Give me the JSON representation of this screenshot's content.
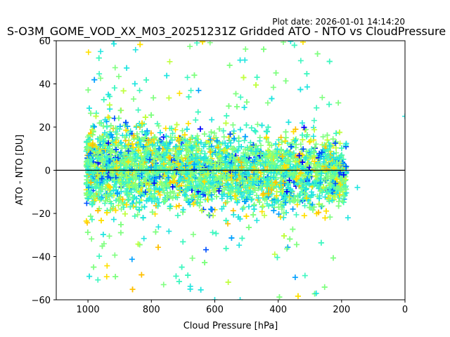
{
  "chart_data": {
    "type": "scatter",
    "title": "S-O3M_GOME_VOD_XX_M03_20251231Z Gridded ATO - NTO vs CloudPressure",
    "plot_date": "Plot date: 2026-01-01 14:14:20",
    "xlabel": "Cloud Pressure [hPa]",
    "ylabel": "ATO - NTO [DU]",
    "xlim": [
      1100,
      0
    ],
    "ylim": [
      -60,
      60
    ],
    "xticks": [
      "1000",
      "800",
      "600",
      "400",
      "200",
      "0"
    ],
    "xtick_values": [
      1000,
      800,
      600,
      400,
      200,
      0
    ],
    "yticks": [
      "60",
      "40",
      "20",
      "0",
      "−20",
      "−40",
      "−60"
    ],
    "ytick_values": [
      60,
      40,
      20,
      0,
      -20,
      -40,
      -60
    ],
    "reference_line_y": 0,
    "marker": "+",
    "colormap_colors": [
      "#0000ff",
      "#0050ff",
      "#00a0ff",
      "#22e5e0",
      "#3ff7c0",
      "#80ff80",
      "#c0ff40",
      "#ffe000",
      "#ffc000"
    ],
    "point_cloud": {
      "x_range": [
        150,
        1005
      ],
      "core_y_range": [
        -25,
        25
      ],
      "outlier_y_range": [
        -60,
        60
      ],
      "approx_count": 6000
    },
    "notable_points": [
      {
        "x": 0,
        "y": 25
      },
      {
        "x": 960,
        "y": 55
      },
      {
        "x": 920,
        "y": 60
      },
      {
        "x": 520,
        "y": 51
      },
      {
        "x": 600,
        "y": -60
      },
      {
        "x": 520,
        "y": -60
      },
      {
        "x": 280,
        "y": -57
      },
      {
        "x": 150,
        "y": -8
      },
      {
        "x": 180,
        "y": -22
      }
    ]
  }
}
